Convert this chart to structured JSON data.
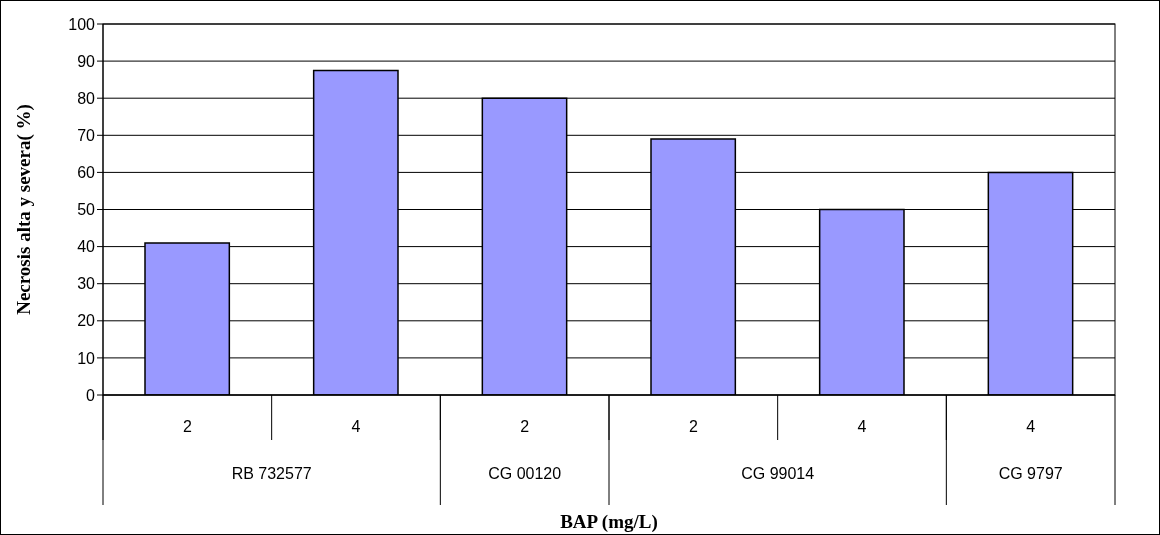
{
  "chart_data": {
    "type": "bar",
    "xlabel": "BAP (mg/L)",
    "ylabel": "Necrosis alta y severa( %)",
    "categories": [
      "2",
      "4",
      "2",
      "2",
      "4",
      "4"
    ],
    "values": [
      41,
      87.5,
      80,
      69,
      50,
      60
    ],
    "color": "#9999ff",
    "annotations": [
      "RB 732577",
      "CG 00120",
      "CG 99014",
      "CG 9797"
    ],
    "ylim": [
      0,
      100
    ],
    "yticks": [
      0,
      10,
      20,
      30,
      40,
      50,
      60,
      70,
      80,
      90,
      100
    ],
    "grid": "y",
    "legend": false
  }
}
